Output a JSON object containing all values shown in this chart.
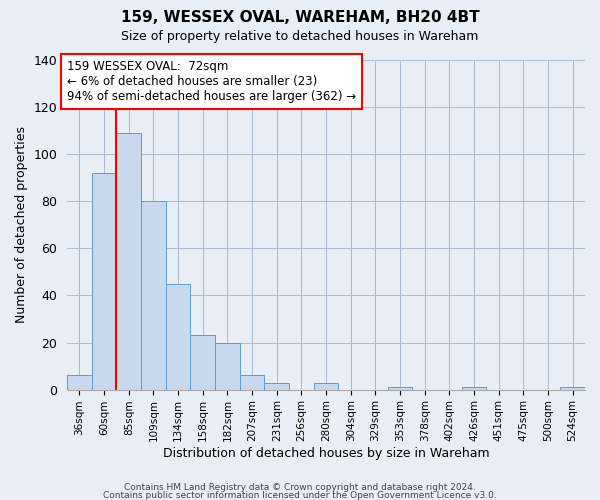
{
  "title": "159, WESSEX OVAL, WAREHAM, BH20 4BT",
  "subtitle": "Size of property relative to detached houses in Wareham",
  "xlabel": "Distribution of detached houses by size in Wareham",
  "ylabel": "Number of detached properties",
  "bar_labels": [
    "36sqm",
    "60sqm",
    "85sqm",
    "109sqm",
    "134sqm",
    "158sqm",
    "182sqm",
    "207sqm",
    "231sqm",
    "256sqm",
    "280sqm",
    "304sqm",
    "329sqm",
    "353sqm",
    "378sqm",
    "402sqm",
    "426sqm",
    "451sqm",
    "475sqm",
    "500sqm",
    "524sqm"
  ],
  "bar_values": [
    6,
    92,
    109,
    80,
    45,
    23,
    20,
    6,
    3,
    0,
    3,
    0,
    0,
    1,
    0,
    0,
    1,
    0,
    0,
    0,
    1
  ],
  "bar_color": "#c8d8ed",
  "bar_edgecolor": "#5a9fd4",
  "ylim": [
    0,
    140
  ],
  "yticks": [
    0,
    20,
    40,
    60,
    80,
    100,
    120,
    140
  ],
  "red_line_x": 1.5,
  "annotation_title": "159 WESSEX OVAL:  72sqm",
  "annotation_line1": "← 6% of detached houses are smaller (23)",
  "annotation_line2": "94% of semi-detached houses are larger (362) →",
  "footer1": "Contains HM Land Registry data © Crown copyright and database right 2024.",
  "footer2": "Contains public sector information licensed under the Open Government Licence v3.0.",
  "bg_color": "#e8eef5",
  "plot_bg_color": "#e8eef5"
}
